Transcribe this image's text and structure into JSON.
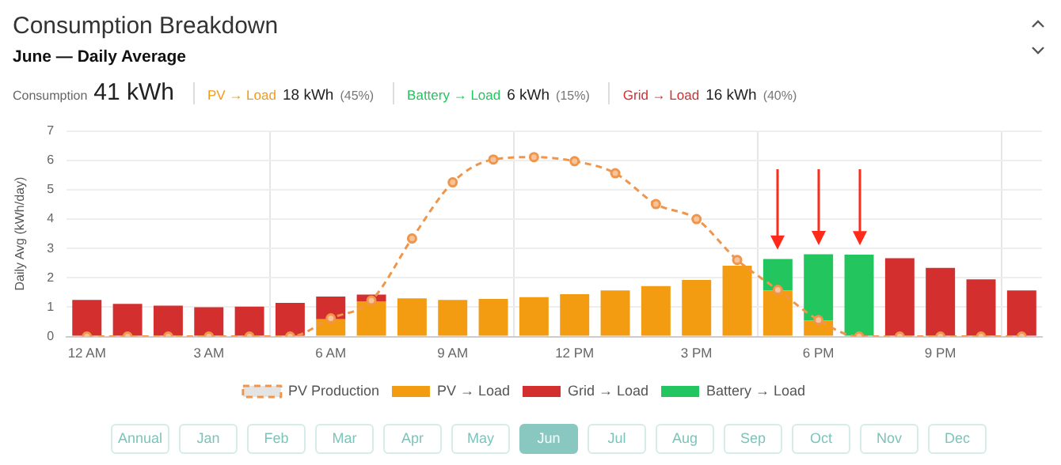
{
  "chart_data": {
    "type": "bar",
    "stacked": true,
    "title": "Consumption Breakdown",
    "subtitle": "June — Daily Average",
    "ylabel": "Daily Avg (kWh/day)",
    "categories": [
      "12 AM",
      null,
      null,
      "3 AM",
      null,
      null,
      "6 AM",
      null,
      null,
      "9 AM",
      null,
      null,
      "12 PM",
      null,
      null,
      "3 PM",
      null,
      null,
      "6 PM",
      null,
      null,
      "9 PM",
      null,
      null
    ],
    "series": [
      {
        "name": "PV Production",
        "type": "line",
        "color": "#f0954a",
        "line_style": "dashed",
        "marker": "circle",
        "values": [
          0,
          0,
          0,
          0,
          0,
          0,
          0.62,
          1.23,
          3.34,
          5.25,
          6.03,
          6.11,
          5.97,
          5.56,
          4.51,
          4.0,
          2.61,
          1.59,
          0.56,
          0,
          0,
          0,
          0,
          0
        ]
      },
      {
        "name": "PV → Load",
        "color": "#f39c12",
        "values": [
          null,
          null,
          null,
          null,
          null,
          null,
          0.59,
          1.2,
          1.3,
          1.25,
          1.28,
          1.34,
          1.44,
          1.57,
          1.72,
          1.93,
          2.41,
          1.57,
          0.54,
          null,
          null,
          null,
          null,
          null
        ]
      },
      {
        "name": "Grid → Load",
        "color": "#d32f2f",
        "values": [
          1.25,
          1.11,
          1.05,
          1.0,
          1.02,
          1.15,
          0.77,
          0.23,
          null,
          null,
          null,
          null,
          null,
          null,
          null,
          null,
          null,
          null,
          null,
          null,
          2.67,
          2.34,
          1.95,
          1.57
        ]
      },
      {
        "name": "Battery → Load",
        "color": "#22c55e",
        "values": [
          null,
          null,
          null,
          null,
          null,
          null,
          null,
          null,
          null,
          null,
          null,
          null,
          null,
          null,
          null,
          null,
          null,
          1.07,
          2.26,
          2.79,
          null,
          null,
          null,
          null
        ]
      }
    ],
    "ylim": [
      0,
      7
    ],
    "yticks": [
      0,
      1,
      2,
      3,
      4,
      5,
      6,
      7
    ],
    "grid": true,
    "legend": "bottom",
    "annotations": [
      "Consumption",
      "41 kWh",
      "PV → Load",
      "18 kWh",
      "(45%)",
      "Battery → Load",
      "6 kWh",
      "(15%)",
      "Grid → Load",
      "16 kWh",
      "(40%)",
      "Annual",
      "Jan",
      "Feb",
      "Mar",
      "Apr",
      "May",
      "Jun",
      "Jul",
      "Aug",
      "Sep",
      "Oct",
      "Nov",
      "Dec"
    ]
  }
}
